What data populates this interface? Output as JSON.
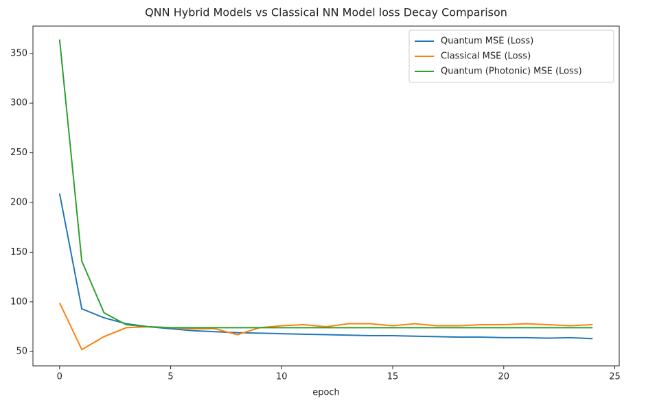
{
  "chart_data": {
    "type": "line",
    "title": "QNN Hybrid Models vs Classical NN Model loss Decay Comparison",
    "x_label": "epoch",
    "x": [
      0,
      1,
      2,
      3,
      4,
      5,
      6,
      7,
      8,
      9,
      10,
      11,
      12,
      13,
      14,
      15,
      16,
      17,
      18,
      19,
      20,
      21,
      22,
      23,
      24
    ],
    "series": [
      {
        "name": "Quantum MSE (Loss)",
        "color": "#1f77b4",
        "values": [
          209,
          93,
          84,
          78,
          75,
          73,
          71,
          70,
          69,
          68.5,
          68,
          67.5,
          67,
          66.5,
          66,
          66,
          65.5,
          65,
          64.5,
          64.5,
          64,
          64,
          63.5,
          64,
          63
        ]
      },
      {
        "name": "Classical MSE (Loss)",
        "color": "#ff7f0e",
        "values": [
          99,
          52,
          65,
          74,
          75,
          74,
          73,
          73,
          67,
          74,
          76,
          77,
          75,
          78,
          78,
          76,
          78,
          76,
          76,
          77,
          77,
          78,
          77,
          76,
          77
        ]
      },
      {
        "name": "Quantum (Photonic) MSE (Loss)",
        "color": "#2ca02c",
        "values": [
          364,
          141,
          89,
          77,
          75,
          74,
          74,
          74,
          74,
          74,
          74,
          74,
          74,
          74,
          74,
          74,
          74,
          74,
          74,
          74,
          74,
          74,
          74,
          74,
          74
        ]
      }
    ],
    "xlim": [
      -1.2,
      25.2
    ],
    "xticks": [
      0,
      5,
      10,
      15,
      20,
      25
    ],
    "ylim": [
      35.6,
      377.5
    ],
    "yticks": [
      50,
      100,
      150,
      200,
      250,
      300,
      350
    ],
    "legend": "upper right"
  }
}
